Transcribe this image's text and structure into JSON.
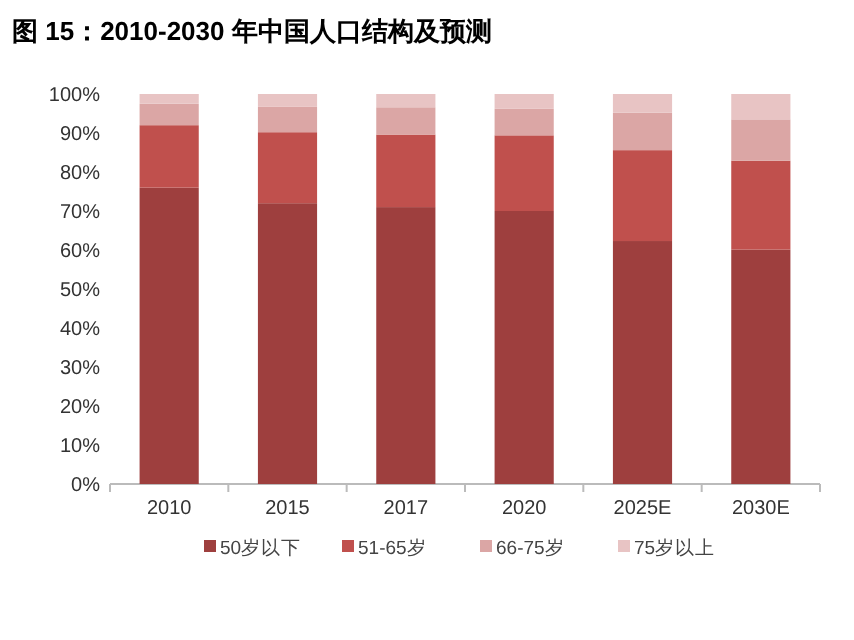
{
  "chart_data": {
    "type": "bar",
    "stacked": true,
    "title": "图 15：2010-2030 年中国人口结构及预测",
    "categories": [
      "2010",
      "2015",
      "2017",
      "2020",
      "2025E",
      "2030E"
    ],
    "series": [
      {
        "name": "50岁以下",
        "color": "#9e3f3e",
        "values": [
          76,
          72,
          71,
          70,
          62.3,
          60.1
        ]
      },
      {
        "name": "51-65岁",
        "color": "#c0504d",
        "values": [
          16,
          18.2,
          18.6,
          19.4,
          23.3,
          22.8
        ]
      },
      {
        "name": "66-75岁",
        "color": "#dba6a5",
        "values": [
          5.5,
          6.5,
          7,
          6.8,
          9.6,
          10.6
        ]
      },
      {
        "name": "75岁以上",
        "color": "#e8c4c4",
        "values": [
          2.5,
          3.3,
          3.4,
          3.8,
          4.8,
          6.5
        ]
      }
    ],
    "ylim": [
      0,
      100
    ],
    "yticks": [
      {
        "value": 0,
        "label": "0%"
      },
      {
        "value": 10,
        "label": "10%"
      },
      {
        "value": 20,
        "label": "20%"
      },
      {
        "value": 30,
        "label": "30%"
      },
      {
        "value": 40,
        "label": "40%"
      },
      {
        "value": 50,
        "label": "50%"
      },
      {
        "value": 60,
        "label": "60%"
      },
      {
        "value": 70,
        "label": "70%"
      },
      {
        "value": 80,
        "label": "80%"
      },
      {
        "value": 90,
        "label": "90%"
      },
      {
        "value": 100,
        "label": "100%"
      }
    ],
    "grid": false,
    "legend": "bottom"
  }
}
